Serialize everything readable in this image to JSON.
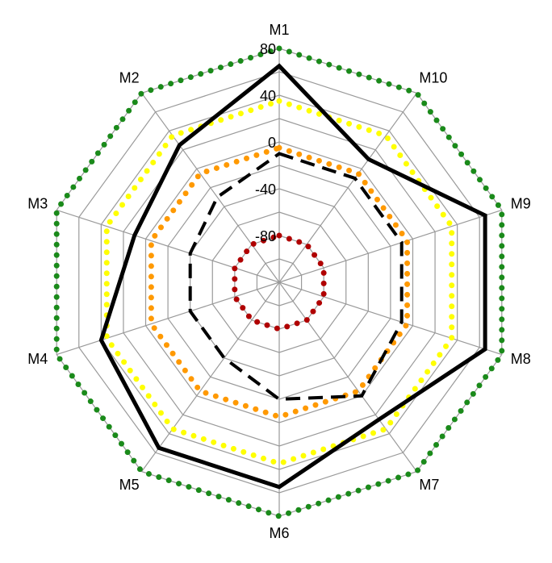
{
  "chart_data": {
    "type": "radar",
    "categories": [
      "M1",
      "M10",
      "M9",
      "M8",
      "M7",
      "M6",
      "M5",
      "M4",
      "M3",
      "M2"
    ],
    "rlim": [
      -120,
      80
    ],
    "ticks": [
      80,
      40,
      0,
      -40,
      -80
    ],
    "grid": true,
    "series": [
      {
        "values": [
          65,
          10,
          65,
          65,
          25,
          55,
          55,
          40,
          10,
          25
        ],
        "color": "#000000",
        "style": "solid"
      },
      {
        "values": [
          -10,
          -10,
          -10,
          -10,
          0,
          -20,
          -40,
          -40,
          -40,
          -30
        ],
        "color": "#000000",
        "style": "dashed"
      },
      {
        "values": [
          80,
          80,
          80,
          80,
          80,
          80,
          80,
          80,
          80,
          80
        ],
        "color": "#1a8a1a",
        "style": "dotted"
      },
      {
        "values": [
          35,
          35,
          35,
          35,
          35,
          35,
          35,
          35,
          35,
          35
        ],
        "color": "#ffff00",
        "style": "dotted"
      },
      {
        "values": [
          -5,
          -5,
          -5,
          -5,
          -5,
          -5,
          -5,
          -5,
          -5,
          -5
        ],
        "color": "#ff9900",
        "style": "dotted"
      },
      {
        "values": [
          -80,
          -80,
          -80,
          -80,
          -80,
          -80,
          -80,
          -80,
          -80,
          -80
        ],
        "color": "#b00000",
        "style": "dotted"
      }
    ]
  }
}
